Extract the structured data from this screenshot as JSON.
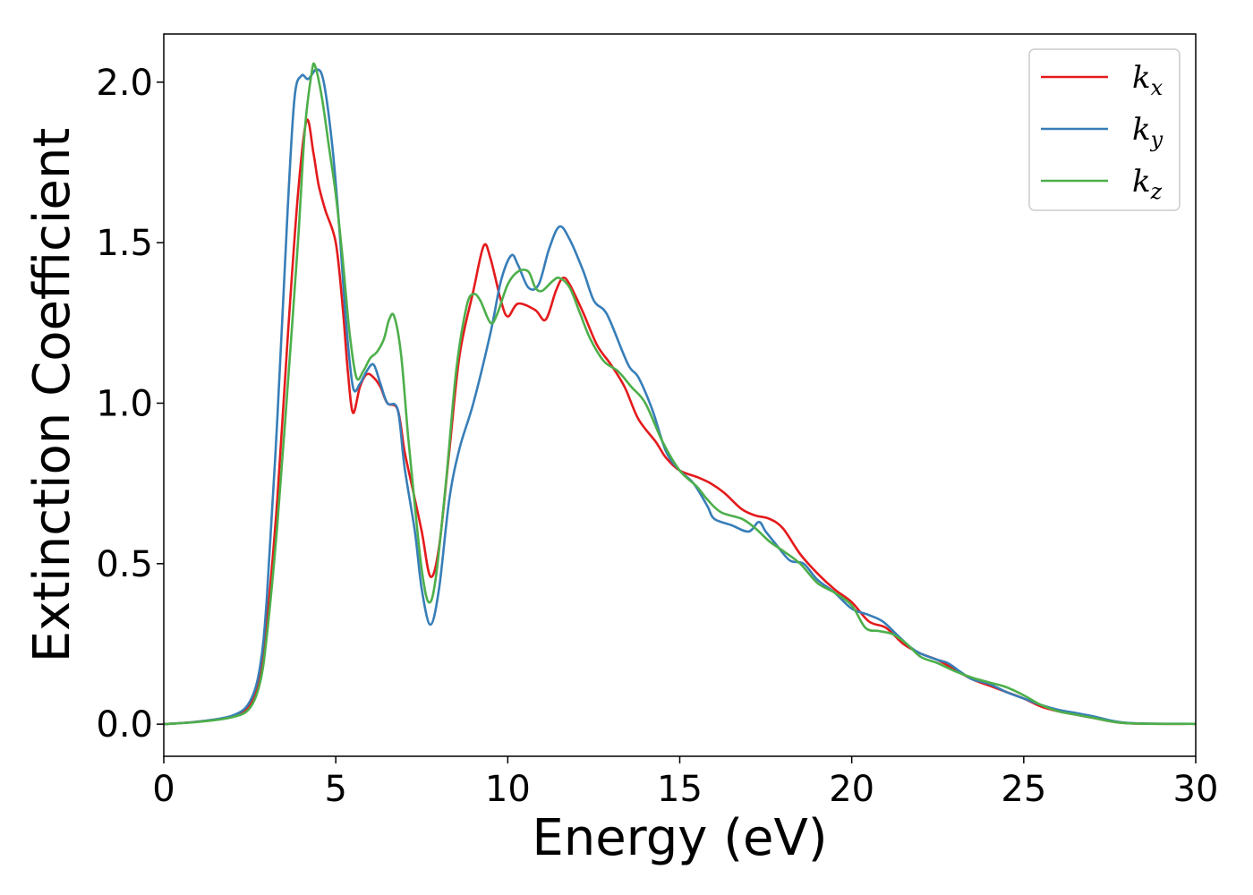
{
  "chart_data": {
    "type": "line",
    "title": "",
    "xlabel": "Energy (eV)",
    "ylabel": "Extinction Coefficient",
    "xlim": [
      0,
      30
    ],
    "ylim": [
      -0.1,
      2.15
    ],
    "xticks": [
      0,
      5,
      10,
      15,
      20,
      25,
      30
    ],
    "yticks": [
      0.0,
      0.5,
      1.0,
      1.5,
      2.0
    ],
    "xtick_labels": [
      "0",
      "5",
      "10",
      "15",
      "20",
      "25",
      "30"
    ],
    "ytick_labels": [
      "0.0",
      "0.5",
      "1.0",
      "1.5",
      "2.0"
    ],
    "grid": false,
    "legend_position": "top-right",
    "series": [
      {
        "name": "k_x",
        "legend_base": "k",
        "legend_sub": "x",
        "color": "#e41a1c",
        "points": [
          [
            0,
            0
          ],
          [
            1,
            0.008
          ],
          [
            2,
            0.025
          ],
          [
            2.5,
            0.06
          ],
          [
            2.8,
            0.15
          ],
          [
            3.0,
            0.32
          ],
          [
            3.3,
            0.7
          ],
          [
            3.6,
            1.2
          ],
          [
            3.9,
            1.65
          ],
          [
            4.15,
            1.88
          ],
          [
            4.35,
            1.78
          ],
          [
            4.5,
            1.68
          ],
          [
            4.7,
            1.6
          ],
          [
            5.0,
            1.5
          ],
          [
            5.2,
            1.3
          ],
          [
            5.35,
            1.1
          ],
          [
            5.5,
            0.97
          ],
          [
            5.7,
            1.05
          ],
          [
            5.9,
            1.09
          ],
          [
            6.1,
            1.08
          ],
          [
            6.3,
            1.05
          ],
          [
            6.5,
            1.0
          ],
          [
            6.8,
            0.98
          ],
          [
            7.0,
            0.85
          ],
          [
            7.2,
            0.75
          ],
          [
            7.5,
            0.6
          ],
          [
            7.75,
            0.46
          ],
          [
            8.0,
            0.55
          ],
          [
            8.3,
            0.85
          ],
          [
            8.6,
            1.15
          ],
          [
            9.0,
            1.35
          ],
          [
            9.3,
            1.49
          ],
          [
            9.5,
            1.45
          ],
          [
            9.8,
            1.32
          ],
          [
            10.0,
            1.27
          ],
          [
            10.3,
            1.31
          ],
          [
            10.8,
            1.29
          ],
          [
            11.1,
            1.26
          ],
          [
            11.4,
            1.35
          ],
          [
            11.6,
            1.39
          ],
          [
            11.8,
            1.37
          ],
          [
            12.2,
            1.28
          ],
          [
            12.6,
            1.18
          ],
          [
            13.0,
            1.12
          ],
          [
            13.4,
            1.05
          ],
          [
            13.8,
            0.95
          ],
          [
            14.3,
            0.88
          ],
          [
            14.6,
            0.83
          ],
          [
            15.0,
            0.79
          ],
          [
            15.5,
            0.77
          ],
          [
            15.9,
            0.75
          ],
          [
            16.3,
            0.72
          ],
          [
            16.8,
            0.67
          ],
          [
            17.2,
            0.65
          ],
          [
            17.6,
            0.64
          ],
          [
            18.0,
            0.61
          ],
          [
            18.5,
            0.53
          ],
          [
            19.0,
            0.47
          ],
          [
            19.5,
            0.42
          ],
          [
            20.0,
            0.38
          ],
          [
            20.5,
            0.32
          ],
          [
            21.0,
            0.3
          ],
          [
            21.5,
            0.25
          ],
          [
            22.0,
            0.22
          ],
          [
            22.5,
            0.2
          ],
          [
            23.0,
            0.17
          ],
          [
            23.5,
            0.14
          ],
          [
            24.0,
            0.12
          ],
          [
            24.5,
            0.1
          ],
          [
            25.0,
            0.08
          ],
          [
            25.5,
            0.055
          ],
          [
            26.0,
            0.04
          ],
          [
            26.5,
            0.03
          ],
          [
            27.0,
            0.02
          ],
          [
            28.0,
            0.003
          ],
          [
            30.0,
            0.001
          ]
        ]
      },
      {
        "name": "k_y",
        "legend_base": "k",
        "legend_sub": "y",
        "color": "#377eb8",
        "points": [
          [
            0,
            0
          ],
          [
            1,
            0.008
          ],
          [
            2,
            0.027
          ],
          [
            2.5,
            0.07
          ],
          [
            2.8,
            0.18
          ],
          [
            3.0,
            0.4
          ],
          [
            3.3,
            0.95
          ],
          [
            3.6,
            1.6
          ],
          [
            3.8,
            1.95
          ],
          [
            4.0,
            2.02
          ],
          [
            4.2,
            2.01
          ],
          [
            4.45,
            2.04
          ],
          [
            4.65,
            2.0
          ],
          [
            4.9,
            1.8
          ],
          [
            5.1,
            1.55
          ],
          [
            5.3,
            1.25
          ],
          [
            5.5,
            1.05
          ],
          [
            5.7,
            1.06
          ],
          [
            5.9,
            1.1
          ],
          [
            6.1,
            1.12
          ],
          [
            6.3,
            1.06
          ],
          [
            6.5,
            1.0
          ],
          [
            6.8,
            0.98
          ],
          [
            7.0,
            0.8
          ],
          [
            7.3,
            0.6
          ],
          [
            7.5,
            0.42
          ],
          [
            7.75,
            0.31
          ],
          [
            8.0,
            0.42
          ],
          [
            8.3,
            0.7
          ],
          [
            8.6,
            0.86
          ],
          [
            9.0,
            1.0
          ],
          [
            9.5,
            1.22
          ],
          [
            9.8,
            1.38
          ],
          [
            10.1,
            1.46
          ],
          [
            10.3,
            1.43
          ],
          [
            10.6,
            1.36
          ],
          [
            10.9,
            1.37
          ],
          [
            11.2,
            1.48
          ],
          [
            11.5,
            1.55
          ],
          [
            11.8,
            1.51
          ],
          [
            12.2,
            1.41
          ],
          [
            12.5,
            1.32
          ],
          [
            12.8,
            1.29
          ],
          [
            13.0,
            1.25
          ],
          [
            13.5,
            1.12
          ],
          [
            13.8,
            1.08
          ],
          [
            14.2,
            0.98
          ],
          [
            14.6,
            0.85
          ],
          [
            15.0,
            0.79
          ],
          [
            15.4,
            0.75
          ],
          [
            15.8,
            0.68
          ],
          [
            16.0,
            0.64
          ],
          [
            16.5,
            0.62
          ],
          [
            17.0,
            0.6
          ],
          [
            17.3,
            0.63
          ],
          [
            17.5,
            0.6
          ],
          [
            17.8,
            0.56
          ],
          [
            18.2,
            0.51
          ],
          [
            18.6,
            0.5
          ],
          [
            19.0,
            0.45
          ],
          [
            19.5,
            0.41
          ],
          [
            20.0,
            0.36
          ],
          [
            20.5,
            0.34
          ],
          [
            20.9,
            0.32
          ],
          [
            21.3,
            0.28
          ],
          [
            21.7,
            0.24
          ],
          [
            22.0,
            0.22
          ],
          [
            22.5,
            0.2
          ],
          [
            22.8,
            0.19
          ],
          [
            23.2,
            0.16
          ],
          [
            23.5,
            0.14
          ],
          [
            24.0,
            0.125
          ],
          [
            24.5,
            0.1
          ],
          [
            25.0,
            0.08
          ],
          [
            25.5,
            0.06
          ],
          [
            26.0,
            0.045
          ],
          [
            26.5,
            0.035
          ],
          [
            27.0,
            0.025
          ],
          [
            28.0,
            0.004
          ],
          [
            30.0,
            0.001
          ]
        ]
      },
      {
        "name": "k_z",
        "legend_base": "k",
        "legend_sub": "z",
        "color": "#4daf4a",
        "points": [
          [
            0,
            0
          ],
          [
            1,
            0.007
          ],
          [
            2,
            0.022
          ],
          [
            2.5,
            0.05
          ],
          [
            2.8,
            0.13
          ],
          [
            3.0,
            0.28
          ],
          [
            3.3,
            0.62
          ],
          [
            3.6,
            1.05
          ],
          [
            3.9,
            1.5
          ],
          [
            4.1,
            1.85
          ],
          [
            4.3,
            2.03
          ],
          [
            4.4,
            2.05
          ],
          [
            4.6,
            1.95
          ],
          [
            4.8,
            1.8
          ],
          [
            5.0,
            1.65
          ],
          [
            5.2,
            1.45
          ],
          [
            5.4,
            1.22
          ],
          [
            5.6,
            1.08
          ],
          [
            5.8,
            1.1
          ],
          [
            6.0,
            1.14
          ],
          [
            6.2,
            1.16
          ],
          [
            6.4,
            1.2
          ],
          [
            6.55,
            1.26
          ],
          [
            6.7,
            1.27
          ],
          [
            6.9,
            1.15
          ],
          [
            7.1,
            0.9
          ],
          [
            7.3,
            0.68
          ],
          [
            7.5,
            0.48
          ],
          [
            7.7,
            0.38
          ],
          [
            7.9,
            0.45
          ],
          [
            8.2,
            0.75
          ],
          [
            8.5,
            1.1
          ],
          [
            8.8,
            1.3
          ],
          [
            9.0,
            1.34
          ],
          [
            9.2,
            1.32
          ],
          [
            9.5,
            1.25
          ],
          [
            9.7,
            1.28
          ],
          [
            10.0,
            1.37
          ],
          [
            10.3,
            1.41
          ],
          [
            10.6,
            1.41
          ],
          [
            10.8,
            1.36
          ],
          [
            11.0,
            1.35
          ],
          [
            11.3,
            1.38
          ],
          [
            11.5,
            1.39
          ],
          [
            11.8,
            1.36
          ],
          [
            12.1,
            1.28
          ],
          [
            12.4,
            1.2
          ],
          [
            12.8,
            1.13
          ],
          [
            13.2,
            1.1
          ],
          [
            13.6,
            1.05
          ],
          [
            14.0,
            1.0
          ],
          [
            14.5,
            0.88
          ],
          [
            15.0,
            0.79
          ],
          [
            15.5,
            0.74
          ],
          [
            15.8,
            0.7
          ],
          [
            16.2,
            0.66
          ],
          [
            16.8,
            0.64
          ],
          [
            17.2,
            0.61
          ],
          [
            17.6,
            0.57
          ],
          [
            18.0,
            0.54
          ],
          [
            18.5,
            0.5
          ],
          [
            19.0,
            0.44
          ],
          [
            19.5,
            0.41
          ],
          [
            20.0,
            0.37
          ],
          [
            20.4,
            0.3
          ],
          [
            20.8,
            0.29
          ],
          [
            21.2,
            0.28
          ],
          [
            21.6,
            0.25
          ],
          [
            22.0,
            0.21
          ],
          [
            22.5,
            0.19
          ],
          [
            23.0,
            0.165
          ],
          [
            23.5,
            0.145
          ],
          [
            24.0,
            0.13
          ],
          [
            24.5,
            0.115
          ],
          [
            25.0,
            0.09
          ],
          [
            25.5,
            0.06
          ],
          [
            26.0,
            0.04
          ],
          [
            26.5,
            0.03
          ],
          [
            27.0,
            0.02
          ],
          [
            28.0,
            0.003
          ],
          [
            30.0,
            0.001
          ]
        ]
      }
    ]
  }
}
